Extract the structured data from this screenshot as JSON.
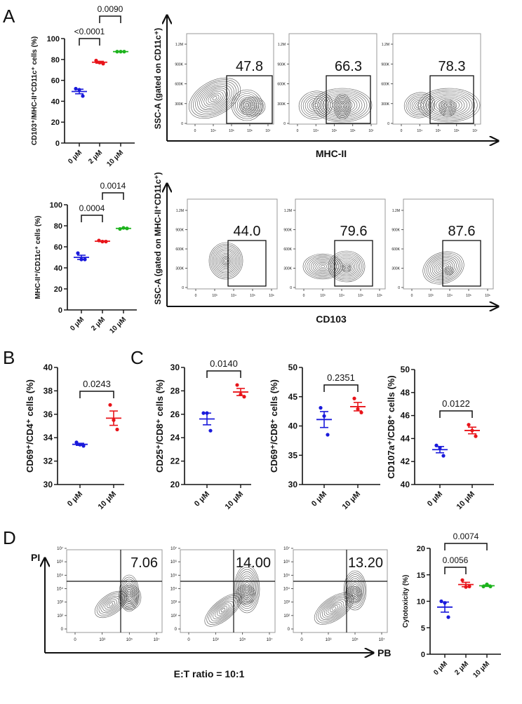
{
  "panels": {
    "A": "A",
    "B": "B",
    "C": "C",
    "D": "D"
  },
  "colors": {
    "group0": "#1a1adb",
    "group1": "#e8141a",
    "group2": "#1db31d",
    "axis": "#111111"
  },
  "chart_data": [
    {
      "id": "A1",
      "type": "scatter",
      "ylabel": "CD103⁺/MHC-II⁺CD11c⁺ cells (%)",
      "ylim": [
        0,
        100
      ],
      "yticks": [
        "0",
        "20",
        "40",
        "60",
        "80",
        "100"
      ],
      "categories": [
        "0 μM",
        "2 μM",
        "10 μM"
      ],
      "values": [
        [
          52,
          51,
          45
        ],
        [
          79,
          77,
          76
        ],
        [
          87.5,
          87.5,
          87.5
        ]
      ],
      "error": "mean ± SEM",
      "comparisons": [
        {
          "from": 0,
          "to": 1,
          "label": "<0.0001"
        },
        {
          "from": 1,
          "to": 2,
          "label": "0.0090"
        }
      ]
    },
    {
      "id": "A2",
      "type": "scatter",
      "ylabel": "MHC-II⁺/CD11c⁺ cells (%)",
      "ylim": [
        0,
        100
      ],
      "yticks": [
        "0",
        "20",
        "40",
        "60",
        "80",
        "100"
      ],
      "categories": [
        "0 μM",
        "2 μM",
        "10 μM"
      ],
      "values": [
        [
          54,
          48,
          48
        ],
        [
          66,
          65,
          65
        ],
        [
          77,
          78,
          77.5
        ]
      ],
      "error": "mean ± SEM",
      "comparisons": [
        {
          "from": 0,
          "to": 1,
          "label": "0.0004"
        },
        {
          "from": 1,
          "to": 2,
          "label": "0.0014"
        }
      ]
    },
    {
      "id": "B",
      "type": "scatter",
      "ylabel": "CD69⁺/CD4⁺ cells (%)",
      "ylim": [
        30,
        40
      ],
      "yticks": [
        "30",
        "32",
        "34",
        "36",
        "38",
        "40"
      ],
      "categories": [
        "0 μM",
        "10 μM"
      ],
      "values": [
        [
          33.6,
          33.4,
          33.3
        ],
        [
          36.8,
          35.5,
          34.7
        ]
      ],
      "error": "mean ± SEM",
      "comparisons": [
        {
          "from": 0,
          "to": 1,
          "label": "0.0243"
        }
      ]
    },
    {
      "id": "C1",
      "type": "scatter",
      "ylabel": "CD25⁺/CD8⁺ cells (%)",
      "ylim": [
        20,
        30
      ],
      "yticks": [
        "20",
        "22",
        "24",
        "26",
        "28",
        "30"
      ],
      "categories": [
        "0 μM",
        "10 μM"
      ],
      "values": [
        [
          26.1,
          26.1,
          24.6
        ],
        [
          28.5,
          27.7,
          27.5
        ]
      ],
      "error": "mean ± SEM",
      "comparisons": [
        {
          "from": 0,
          "to": 1,
          "label": "0.0140"
        }
      ]
    },
    {
      "id": "C2",
      "type": "scatter",
      "ylabel": "CD69⁺/CD8⁺ cells (%)",
      "ylim": [
        30,
        50
      ],
      "yticks": [
        "30",
        "35",
        "40",
        "45",
        "50"
      ],
      "categories": [
        "0 μM",
        "10 μM"
      ],
      "values": [
        [
          43.1,
          41.7,
          38.5
        ],
        [
          44.7,
          42.9,
          42.3
        ]
      ],
      "error": "mean ± SEM",
      "comparisons": [
        {
          "from": 0,
          "to": 1,
          "label": "0.2351"
        }
      ]
    },
    {
      "id": "C3",
      "type": "scatter",
      "ylabel": "CD107a⁺/CD8⁺ cells (%)",
      "ylim": [
        40,
        50
      ],
      "yticks": [
        "40",
        "42",
        "44",
        "46",
        "48",
        "50"
      ],
      "categories": [
        "0 μM",
        "10 μM"
      ],
      "values": [
        [
          43.4,
          43.2,
          42.5
        ],
        [
          45.2,
          44.7,
          44.2
        ]
      ],
      "error": "mean ± SEM",
      "comparisons": [
        {
          "from": 0,
          "to": 1,
          "label": "0.0122"
        }
      ]
    },
    {
      "id": "D",
      "type": "scatter",
      "ylabel": "Cytotoxicity (%)",
      "ylim": [
        0,
        20
      ],
      "yticks": [
        "0",
        "5",
        "10",
        "15",
        "20"
      ],
      "categories": [
        "0 μM",
        "2 μM",
        "10 μM"
      ],
      "values": [
        [
          10,
          9.7,
          7
        ],
        [
          14,
          12.7,
          12.8
        ],
        [
          12.8,
          13.2,
          12.8
        ]
      ],
      "error": "mean ± SEM",
      "comparisons": [
        {
          "from": 0,
          "to": 1,
          "label": "0.0056"
        },
        {
          "from": 0,
          "to": 2,
          "label": "0.0074"
        }
      ]
    }
  ],
  "flow": {
    "rowA1": {
      "ylabel": "SSC-A (gated on CD11c⁺)",
      "xlabel": "MHC-II",
      "yticks": [
        "0",
        "300K",
        "600K",
        "900K",
        "1.2M"
      ],
      "xticks": [
        "0",
        "10⁴",
        "10⁵",
        "10⁶",
        "10⁷"
      ],
      "gates": [
        "47.8",
        "66.3",
        "78.3"
      ]
    },
    "rowA2": {
      "ylabel": "SSC-A (gated on MHC-II⁺CD11c⁺)",
      "xlabel": "CD103",
      "yticks": [
        "0",
        "300K",
        "600K",
        "900K",
        "1.2M"
      ],
      "xticks": [
        "0",
        "10³",
        "10⁴",
        "10⁵",
        "10⁶"
      ],
      "gates": [
        "44.0",
        "79.6",
        "87.6"
      ]
    },
    "rowD": {
      "ylabel": "PI",
      "xlabel": "PB",
      "caption": "E:T ratio = 10:1",
      "yticks": [
        "0",
        "10²",
        "10³",
        "10⁴",
        "10⁵",
        "10⁶",
        "10⁷"
      ],
      "xticks": [
        "0",
        "10³",
        "10⁵",
        "10⁷"
      ],
      "gates": [
        "7.06",
        "14.00",
        "13.20"
      ]
    }
  }
}
